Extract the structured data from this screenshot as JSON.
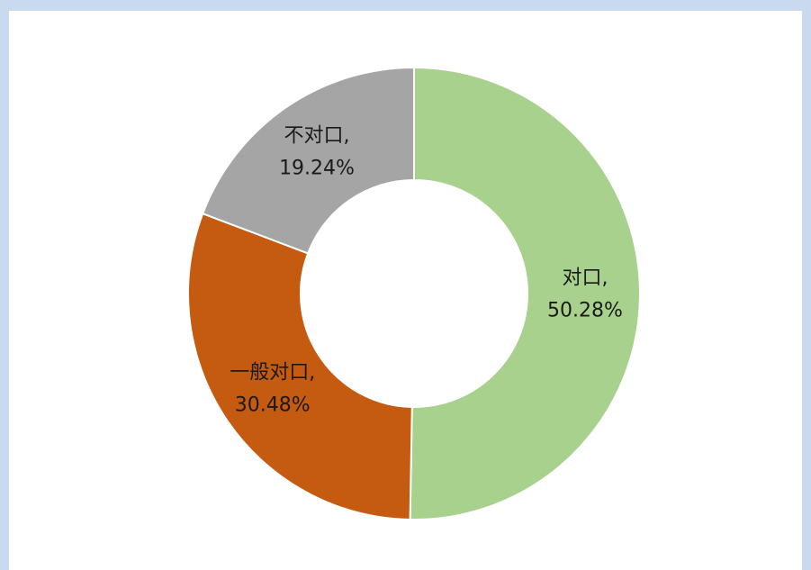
{
  "chart_data": {
    "type": "pie",
    "categories": [
      "对口,",
      "一般对口,",
      "不对口,"
    ],
    "values": [
      50.28,
      30.48,
      19.24
    ],
    "value_labels": [
      "50.28%",
      "30.48%",
      "19.24%"
    ],
    "colors": [
      "#a9d18e",
      "#c55a11",
      "#a5a5a5"
    ],
    "donut": true
  }
}
